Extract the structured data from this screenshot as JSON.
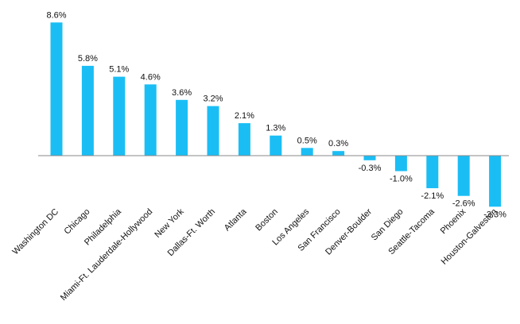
{
  "chart_data": {
    "type": "bar",
    "categories": [
      "Washington DC",
      "Chicago",
      "Philadelphia",
      "Miami-Ft. Lauderdale-Hollywood",
      "New York",
      "Dallas-Ft. Worth",
      "Atlanta",
      "Boston",
      "Los Angeles",
      "San Francisco",
      "Denver-Boulder",
      "San Diego",
      "Seattle-Tacoma",
      "Phoenix",
      "Houston-Galveston"
    ],
    "values": [
      8.6,
      5.8,
      5.1,
      4.6,
      3.6,
      3.2,
      2.1,
      1.3,
      0.5,
      0.3,
      -0.3,
      -1.0,
      -2.1,
      -2.6,
      -3.3
    ],
    "data_labels": [
      "8.6%",
      "5.8%",
      "5.1%",
      "4.6%",
      "3.6%",
      "3.2%",
      "2.1%",
      "1.3%",
      "0.5%",
      "0.3%",
      "-0.3%",
      "-1.0%",
      "-2.1%",
      "-2.6%",
      "-3.3%"
    ],
    "bar_color": "#1ABEF5",
    "axis_color": "#888888",
    "title": "",
    "xlabel": "",
    "ylabel": "",
    "grid": false,
    "legend": "none"
  }
}
